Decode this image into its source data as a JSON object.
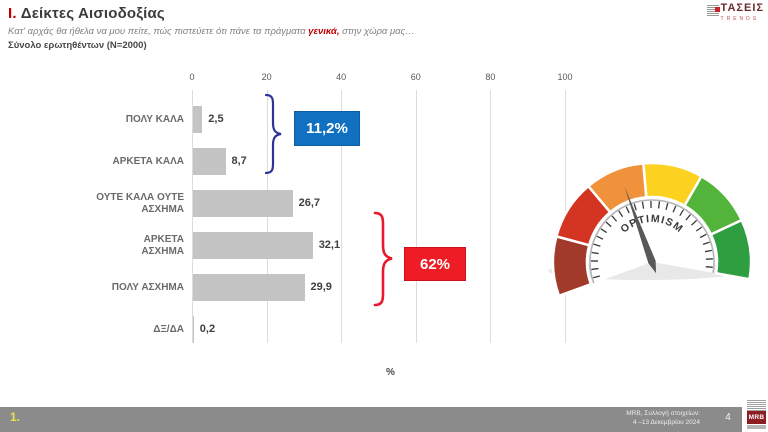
{
  "header": {
    "title_prefix": "Ι.",
    "title": "Δείκτες Αισιοδοξίας",
    "subtitle_before": "Κατ' αρχάς θα ήθελα να μου πείτε, πώς πιστεύετε ότι πάνε τα πράγματα ",
    "subtitle_highlight": "γενικά,",
    "subtitle_after": " στην χώρα μας…",
    "sample": "Σύνολο ερωτηθέντων (N=2000)"
  },
  "brand": {
    "name": "ΤΑΣΕΙΣ",
    "subname": "TRENDS"
  },
  "chart_data": {
    "type": "bar",
    "orientation": "horizontal",
    "categories": [
      "ΠΟΛΥ ΚΑΛΑ",
      "ΑΡΚΕΤΑ ΚΑΛΑ",
      "ΟΥΤΕ ΚΑΛΑ ΟΥΤΕ\nΑΣΧΗΜΑ",
      "ΑΡΚΕΤΑ\nΑΣΧΗΜΑ",
      "ΠΟΛΥ ΑΣΧΗΜΑ",
      "ΔΞ/ΔΑ"
    ],
    "values": [
      2.5,
      8.7,
      26.7,
      32.1,
      29.9,
      0.2
    ],
    "value_labels": [
      "2,5",
      "8,7",
      "26,7",
      "32,1",
      "29,9",
      "0,2"
    ],
    "x_ticks": [
      0,
      20,
      40,
      60,
      80,
      100
    ],
    "xlim": [
      0,
      100
    ],
    "xlabel": "%",
    "bar_color": "#c4c4c4",
    "grid": true,
    "annotations": [
      {
        "label": "11,2%",
        "color": "#1170bf",
        "covers": [
          "ΠΟΛΥ ΚΑΛΑ",
          "ΑΡΚΕΤΑ ΚΑΛΑ"
        ]
      },
      {
        "label": "62%",
        "color": "#ee1c25",
        "covers": [
          "ΑΡΚΕΤΑ ΑΣΧΗΜΑ",
          "ΠΟΛΥ ΑΣΧΗΜΑ"
        ]
      }
    ]
  },
  "gauge": {
    "label": "OPTIMISM",
    "segment_colors": [
      "#a13a2b",
      "#d43422",
      "#f0923c",
      "#fcd11f",
      "#52b43a",
      "#2f9e41"
    ],
    "start_angle_deg": 200,
    "end_angle_deg": -10,
    "needle_angle_deg": 110,
    "needle_color": "#58595b"
  },
  "footer": {
    "slide_ref": "1.",
    "source_line1": "MRB, Συλλογή στοιχείων:",
    "source_line2": "4 –13 Δεκεμβρίου 2024",
    "page": "4",
    "logo": "MRB"
  }
}
